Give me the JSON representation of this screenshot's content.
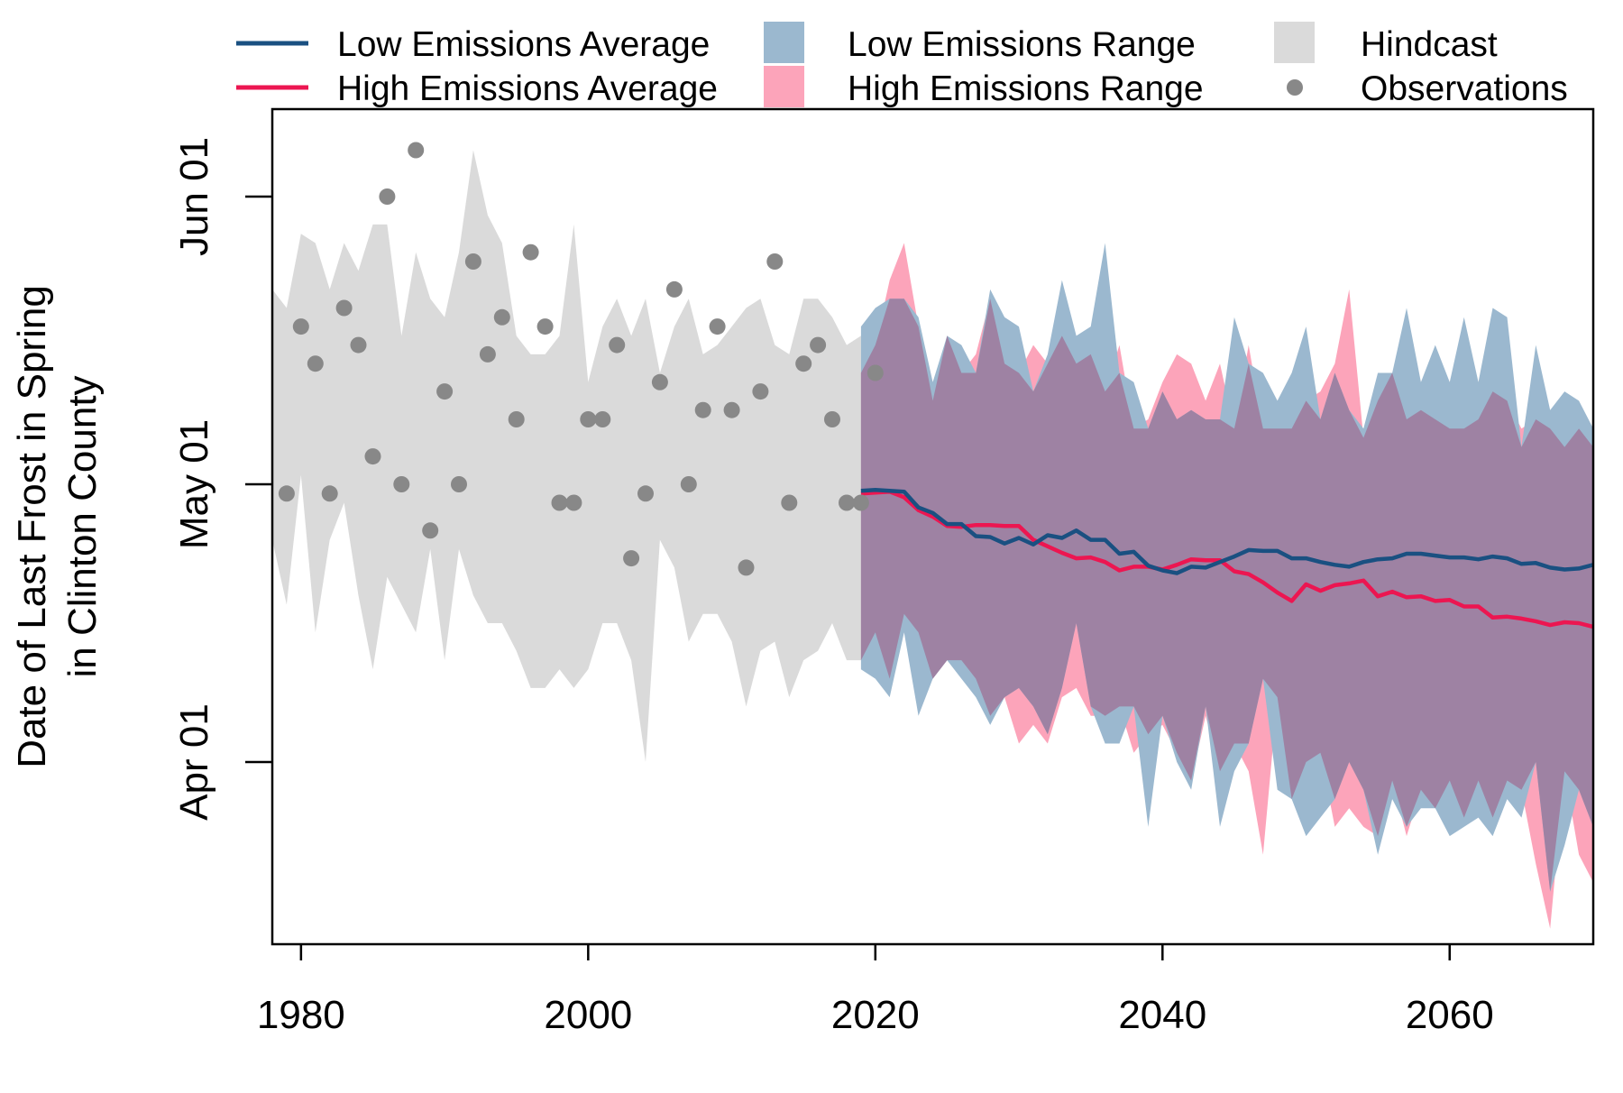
{
  "chart_data": {
    "type": "area",
    "title": "",
    "xlabel": "",
    "ylabel_lines": [
      "Date of Last Frost in Spring",
      "in Clinton County"
    ],
    "xlim": [
      1978,
      2070
    ],
    "ylim_day_of_year": [
      76,
      134
    ],
    "x_ticks": [
      1980,
      2000,
      2020,
      2040,
      2060
    ],
    "y_ticks": [
      {
        "label": "Apr 01",
        "day_of_year": 91
      },
      {
        "label": "May 01",
        "day_of_year": 121
      },
      {
        "label": "Jun 01",
        "day_of_year": 152
      }
    ],
    "legend_position": "top",
    "legend": {
      "low_avg": "Low Emissions Average",
      "high_avg": "High Emissions Average",
      "low_range": "Low Emissions Range",
      "high_range": "High Emissions Range",
      "hindcast": "Hindcast",
      "observations": "Observations"
    },
    "colors": {
      "low_avg": "#1a5081",
      "high_avg": "#ec1651",
      "low_range": "#9bb8cf",
      "high_range": "#fca4ba",
      "overlap": "#9e82a3",
      "hindcast": "#dadada",
      "observations": "#888888"
    },
    "hindcast": {
      "x": [
        1978,
        1979,
        1980,
        1981,
        1982,
        1983,
        1984,
        1985,
        1986,
        1987,
        1988,
        1989,
        1990,
        1991,
        1992,
        1993,
        1994,
        1995,
        1996,
        1997,
        1998,
        1999,
        2000,
        2001,
        2002,
        2003,
        2004,
        2005,
        2006,
        2007,
        2008,
        2009,
        2010,
        2011,
        2012,
        2013,
        2014,
        2015,
        2016,
        2017,
        2018,
        2019
      ],
      "upper": [
        142,
        140,
        148,
        147,
        142,
        147,
        144,
        149,
        149,
        137,
        146,
        141,
        139,
        146,
        157,
        150,
        147,
        137,
        135,
        135,
        137,
        149,
        132,
        138,
        141,
        137,
        141,
        133,
        138,
        141,
        135,
        136,
        138,
        140,
        141,
        136,
        135,
        141,
        141,
        139,
        136,
        137
      ],
      "lower": [
        115,
        108,
        122,
        105,
        115,
        119,
        109,
        101,
        111,
        108,
        105,
        114,
        102,
        114,
        109,
        106,
        106,
        103,
        99,
        99,
        101,
        99,
        101,
        106,
        106,
        102,
        91,
        115,
        112,
        104,
        107,
        107,
        104,
        97,
        103,
        104,
        98,
        102,
        103,
        106,
        102,
        102
      ]
    },
    "observations": {
      "x": [
        1979,
        1980,
        1981,
        1982,
        1983,
        1984,
        1985,
        1986,
        1987,
        1988,
        1989,
        1990,
        1991,
        1992,
        1993,
        1994,
        1995,
        1996,
        1997,
        1998,
        1999,
        2000,
        2001,
        2002,
        2003,
        2004,
        2005,
        2006,
        2007,
        2008,
        2009,
        2010,
        2011,
        2012,
        2013,
        2014,
        2015,
        2016,
        2017,
        2018,
        2019,
        2020
      ],
      "y": [
        120,
        138,
        134,
        120,
        140,
        136,
        124,
        152,
        121,
        157,
        116,
        131,
        121,
        145,
        135,
        139,
        128,
        146,
        138,
        119,
        119,
        128,
        128,
        136,
        113,
        120,
        132,
        142,
        121,
        129,
        138,
        129,
        112,
        131,
        145,
        119,
        134,
        136,
        128,
        119,
        119,
        133
      ]
    },
    "low_range": {
      "x": [
        2019,
        2020,
        2021,
        2022,
        2023,
        2024,
        2025,
        2026,
        2027,
        2028,
        2029,
        2030,
        2031,
        2032,
        2033,
        2034,
        2035,
        2036,
        2037,
        2038,
        2039,
        2040,
        2041,
        2042,
        2043,
        2044,
        2045,
        2046,
        2047,
        2048,
        2049,
        2050,
        2051,
        2052,
        2053,
        2054,
        2055,
        2056,
        2057,
        2058,
        2059,
        2060,
        2061,
        2062,
        2063,
        2064,
        2065,
        2066,
        2067,
        2068,
        2069,
        2070
      ],
      "upper": [
        138,
        140,
        141,
        141,
        139,
        132,
        137,
        136,
        133,
        142,
        139,
        138,
        131,
        135,
        143,
        137,
        138,
        147,
        133,
        132,
        127,
        131,
        128,
        129,
        128,
        128,
        139,
        134,
        133,
        130,
        133,
        138,
        128,
        133,
        129,
        127,
        133,
        133,
        140,
        132,
        136,
        132,
        139,
        132,
        140,
        139,
        125,
        136,
        129,
        131,
        130,
        127
      ],
      "lower": [
        101,
        100,
        98,
        105,
        96,
        100,
        102,
        100,
        98,
        95,
        98,
        99,
        97,
        94,
        99,
        106,
        97,
        93,
        93,
        97,
        84,
        96,
        91,
        88,
        97,
        84,
        90,
        93,
        100,
        88,
        87,
        83,
        85,
        87,
        91,
        88,
        81,
        87,
        84,
        86,
        86,
        83,
        84,
        85,
        83,
        87,
        85,
        91,
        77,
        82,
        88,
        84
      ]
    },
    "high_range": {
      "x": [
        2019,
        2020,
        2021,
        2022,
        2023,
        2024,
        2025,
        2026,
        2027,
        2028,
        2029,
        2030,
        2031,
        2032,
        2033,
        2034,
        2035,
        2036,
        2037,
        2038,
        2039,
        2040,
        2041,
        2042,
        2043,
        2044,
        2045,
        2046,
        2047,
        2048,
        2049,
        2050,
        2051,
        2052,
        2053,
        2054,
        2055,
        2056,
        2057,
        2058,
        2059,
        2060,
        2061,
        2062,
        2063,
        2064,
        2065,
        2066,
        2067,
        2068,
        2069,
        2070
      ],
      "upper": [
        133,
        136,
        143,
        147,
        138,
        130,
        137,
        133,
        135,
        141,
        134,
        133,
        136,
        134,
        137,
        134,
        135,
        131,
        136,
        127,
        128,
        132,
        135,
        134,
        130,
        134,
        127,
        136,
        127,
        127,
        127,
        130,
        131,
        134,
        142,
        126,
        130,
        133,
        128,
        129,
        128,
        127,
        127,
        128,
        131,
        130,
        127,
        128,
        127,
        125,
        127,
        125
      ],
      "lower": [
        102,
        105,
        100,
        107,
        105,
        100,
        102,
        102,
        100,
        96,
        98,
        93,
        95,
        93,
        98,
        99,
        96,
        96,
        97,
        92,
        94,
        95,
        92,
        89,
        96,
        90,
        93,
        90,
        81,
        98,
        87,
        91,
        92,
        84,
        86,
        84,
        83,
        89,
        83,
        88,
        86,
        89,
        85,
        89,
        85,
        89,
        88,
        80,
        73,
        90,
        81,
        78
      ]
    },
    "low_avg": {
      "x": [
        2019,
        2020,
        2021,
        2022,
        2023,
        2024,
        2025,
        2026,
        2027,
        2028,
        2029,
        2030,
        2031,
        2032,
        2033,
        2034,
        2035,
        2036,
        2037,
        2038,
        2039,
        2040,
        2041,
        2042,
        2043,
        2044,
        2045,
        2046,
        2047,
        2048,
        2049,
        2050,
        2051,
        2052,
        2053,
        2054,
        2055,
        2056,
        2057,
        2058,
        2059,
        2060,
        2061,
        2062,
        2063,
        2064,
        2065,
        2066,
        2067,
        2068,
        2069,
        2070
      ],
      "values": [
        120.3,
        120.4,
        120.3,
        120.2,
        118.5,
        117.9,
        116.7,
        116.7,
        115.4,
        115.3,
        114.6,
        115.2,
        114.5,
        115.5,
        115.2,
        116.0,
        115.0,
        115.0,
        113.5,
        113.7,
        112.2,
        111.7,
        111.4,
        112.1,
        112.0,
        112.6,
        113.2,
        113.9,
        113.8,
        113.8,
        113.0,
        113.0,
        112.6,
        112.3,
        112.1,
        112.6,
        112.9,
        113.0,
        113.5,
        113.5,
        113.3,
        113.1,
        113.1,
        112.9,
        113.2,
        113.0,
        112.4,
        112.5,
        112.0,
        111.8,
        111.9,
        112.3
      ]
    },
    "high_avg": {
      "x": [
        2019,
        2020,
        2021,
        2022,
        2023,
        2024,
        2025,
        2026,
        2027,
        2028,
        2029,
        2030,
        2031,
        2032,
        2033,
        2034,
        2035,
        2036,
        2037,
        2038,
        2039,
        2040,
        2041,
        2042,
        2043,
        2044,
        2045,
        2046,
        2047,
        2048,
        2049,
        2050,
        2051,
        2052,
        2053,
        2054,
        2055,
        2056,
        2057,
        2058,
        2059,
        2060,
        2061,
        2062,
        2063,
        2064,
        2065,
        2066,
        2067,
        2068,
        2069,
        2070
      ],
      "values": [
        120.0,
        120.1,
        120.2,
        119.6,
        118.2,
        117.5,
        116.5,
        116.4,
        116.6,
        116.6,
        116.5,
        116.5,
        115.0,
        114.3,
        113.6,
        113.0,
        113.1,
        112.6,
        111.7,
        112.1,
        112.1,
        111.8,
        112.3,
        112.9,
        112.8,
        112.8,
        111.6,
        111.3,
        110.4,
        109.3,
        108.4,
        110.2,
        109.5,
        110.1,
        110.3,
        110.6,
        108.9,
        109.4,
        108.8,
        108.9,
        108.4,
        108.5,
        107.8,
        107.8,
        106.6,
        106.7,
        106.5,
        106.2,
        105.8,
        106.1,
        106.0,
        105.6
      ]
    }
  }
}
